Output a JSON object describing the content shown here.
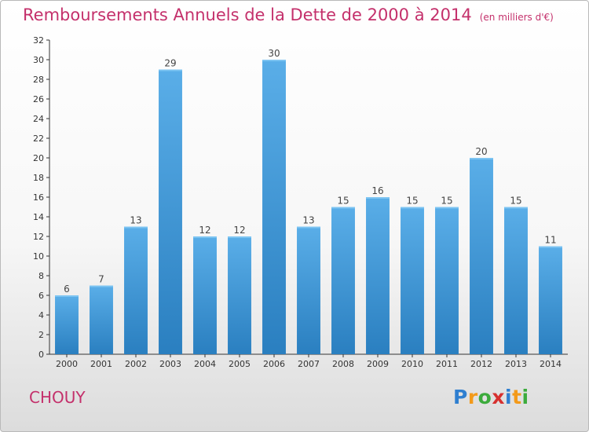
{
  "chart_data": {
    "type": "bar",
    "title": "Remboursements Annuels de la Dette de 2000 à 2014",
    "subtitle": "(en milliers d'€)",
    "categories": [
      "2000",
      "2001",
      "2002",
      "2003",
      "2004",
      "2005",
      "2006",
      "2007",
      "2008",
      "2009",
      "2010",
      "2011",
      "2012",
      "2013",
      "2014"
    ],
    "values": [
      6,
      7,
      13,
      29,
      12,
      12,
      30,
      13,
      15,
      16,
      15,
      15,
      20,
      15,
      11
    ],
    "xlabel": "",
    "ylabel": "",
    "ylim": [
      0,
      32
    ],
    "yticks": [
      0,
      2,
      4,
      6,
      8,
      10,
      12,
      14,
      16,
      18,
      20,
      22,
      24,
      26,
      28,
      30,
      32
    ],
    "grid": false,
    "legend": "none",
    "colors": {
      "bar_top": "#5aaee8",
      "bar_bottom": "#2a7fc0",
      "title": "#c4306b"
    }
  },
  "place_name": "CHOUY",
  "logo": {
    "letters": [
      "P",
      "r",
      "o",
      "x",
      "i",
      "t",
      "i"
    ],
    "colors": [
      "#2f7fd0",
      "#f39a1a",
      "#3cab3c",
      "#d6302f",
      "#2f7fd0",
      "#f39a1a",
      "#3cab3c"
    ]
  }
}
